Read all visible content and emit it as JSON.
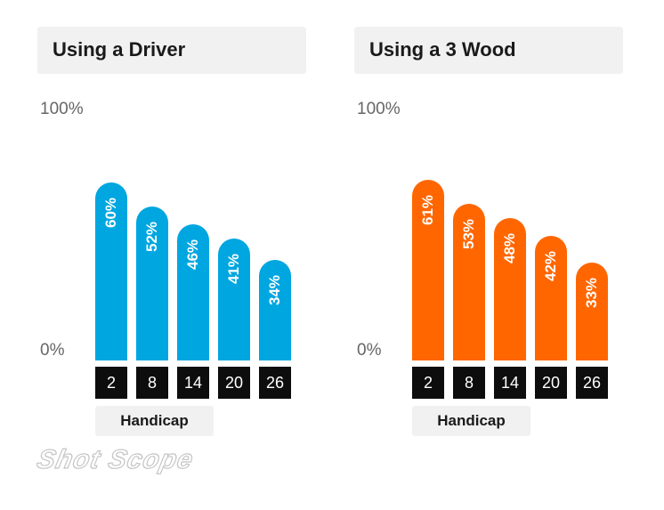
{
  "chart_data": [
    {
      "type": "bar",
      "title": "Using a Driver",
      "xlabel": "Handicap",
      "categories": [
        "2",
        "8",
        "14",
        "20",
        "26"
      ],
      "values": [
        60,
        52,
        46,
        41,
        34
      ],
      "data_labels": [
        "60%",
        "52%",
        "46%",
        "41%",
        "34%"
      ],
      "ytick_labels": [
        "100%",
        "0%"
      ],
      "ylim": [
        0,
        100
      ],
      "color": "#00a6e0",
      "grid": false
    },
    {
      "type": "bar",
      "title": "Using a 3 Wood",
      "xlabel": "Handicap",
      "categories": [
        "2",
        "8",
        "14",
        "20",
        "26"
      ],
      "values": [
        61,
        53,
        48,
        42,
        33
      ],
      "data_labels": [
        "61%",
        "53%",
        "48%",
        "42%",
        "33%"
      ],
      "ytick_labels": [
        "100%",
        "0%"
      ],
      "ylim": [
        0,
        100
      ],
      "color": "#ff6600",
      "grid": false
    }
  ],
  "logo": "Shot Scope"
}
